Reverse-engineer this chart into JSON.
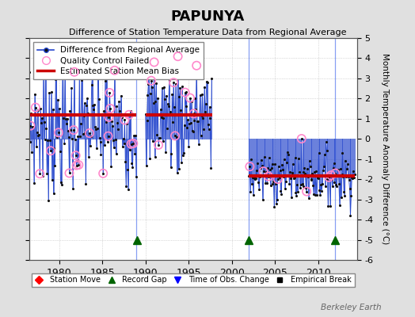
{
  "title": "PAPUNYA",
  "subtitle": "Difference of Station Temperature Data from Regional Average",
  "ylabel": "Monthly Temperature Anomaly Difference (°C)",
  "xlim": [
    1976.5,
    2014.5
  ],
  "ylim": [
    -6,
    5
  ],
  "yticks": [
    -6,
    -5,
    -4,
    -3,
    -2,
    -1,
    0,
    1,
    2,
    3,
    4,
    5
  ],
  "xtick_labels": [
    1980,
    1985,
    1990,
    1995,
    2000,
    2005,
    2010
  ],
  "background_color": "#e0e0e0",
  "plot_bg_color": "#ffffff",
  "grid_color": "#bbbbbb",
  "line_color": "#2244cc",
  "dot_color": "#111111",
  "qc_color": "#ff88cc",
  "bias_color": "#cc0000",
  "watermark": "Berkeley Earth",
  "seg1_start": 1976.5,
  "seg1_end": 1988.95,
  "seg1_bias": 1.2,
  "seg2_start": 1990.0,
  "seg2_end": 1997.75,
  "seg2_bias": 1.2,
  "seg3_start": 2002.0,
  "seg3_end": 2014.3,
  "seg3_bias": -1.85,
  "record_gaps": [
    1989.0,
    2002.0,
    2012.0
  ],
  "vline_color": "#5577ee"
}
